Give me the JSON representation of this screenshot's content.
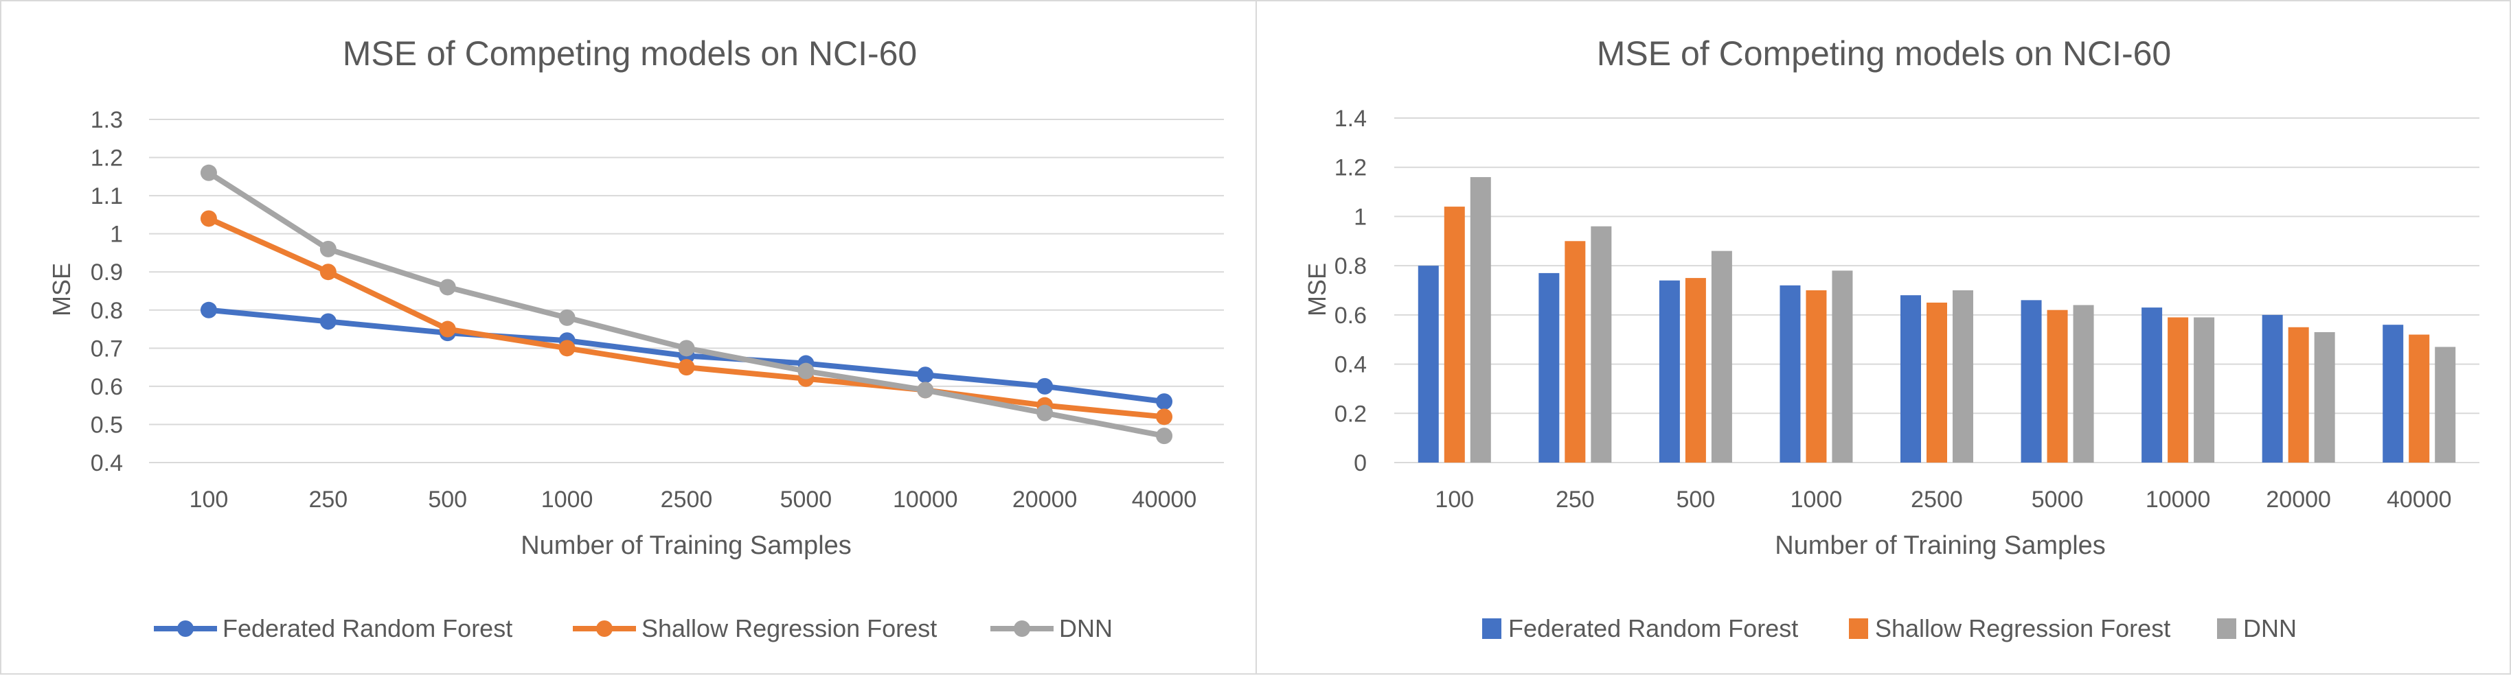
{
  "chart_data": [
    {
      "type": "line",
      "title": "MSE of Competing models on NCI-60",
      "xlabel": "Number of Training Samples",
      "ylabel": "MSE",
      "categories": [
        "100",
        "250",
        "500",
        "1000",
        "2500",
        "5000",
        "10000",
        "20000",
        "40000"
      ],
      "ylim": [
        0.4,
        1.3
      ],
      "yticks": [
        "1.3",
        "1.2",
        "1.1",
        "1",
        "0.9",
        "0.8",
        "0.7",
        "0.6",
        "0.5",
        "0.4"
      ],
      "grid": true,
      "legend_position": "bottom",
      "series": [
        {
          "name": "Federated Random Forest",
          "color": "#4472C4",
          "values": [
            0.8,
            0.77,
            0.74,
            0.72,
            0.68,
            0.66,
            0.63,
            0.6,
            0.56
          ]
        },
        {
          "name": "Shallow Regression Forest",
          "color": "#ED7D31",
          "values": [
            1.04,
            0.9,
            0.75,
            0.7,
            0.65,
            0.62,
            0.59,
            0.55,
            0.52
          ]
        },
        {
          "name": "DNN",
          "color": "#A5A5A5",
          "values": [
            1.16,
            0.96,
            0.86,
            0.78,
            0.7,
            0.64,
            0.59,
            0.53,
            0.47
          ]
        }
      ]
    },
    {
      "type": "bar",
      "title": "MSE of Competing models on NCI-60",
      "xlabel": "Number of Training Samples",
      "ylabel": "MSE",
      "categories": [
        "100",
        "250",
        "500",
        "1000",
        "2500",
        "5000",
        "10000",
        "20000",
        "40000"
      ],
      "ylim": [
        0,
        1.4
      ],
      "yticks": [
        "1.4",
        "1.2",
        "1",
        "0.8",
        "0.6",
        "0.4",
        "0.2",
        "0"
      ],
      "grid": true,
      "legend_position": "bottom",
      "series": [
        {
          "name": "Federated Random Forest",
          "color": "#4472C4",
          "values": [
            0.8,
            0.77,
            0.74,
            0.72,
            0.68,
            0.66,
            0.63,
            0.6,
            0.56
          ]
        },
        {
          "name": "Shallow Regression Forest",
          "color": "#ED7D31",
          "values": [
            1.04,
            0.9,
            0.75,
            0.7,
            0.65,
            0.62,
            0.59,
            0.55,
            0.52
          ]
        },
        {
          "name": "DNN",
          "color": "#A5A5A5",
          "values": [
            1.16,
            0.96,
            0.86,
            0.78,
            0.7,
            0.64,
            0.59,
            0.53,
            0.47
          ]
        }
      ]
    }
  ]
}
